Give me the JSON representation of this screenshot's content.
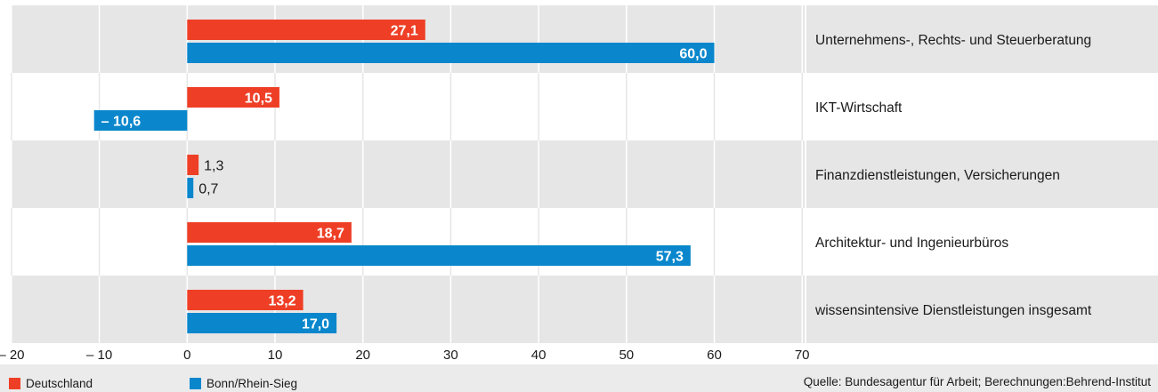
{
  "chart_data": {
    "type": "bar",
    "orientation": "horizontal",
    "categories": [
      "Unternehmens-, Rechts- und Steuerberatung",
      "IKT-Wirtschaft",
      "Finanzdienstleistungen, Versicherungen",
      "Architektur- und Ingenieurbüros",
      "wissensintensive Dienstleistungen insgesamt"
    ],
    "series": [
      {
        "name": "Deutschland",
        "color": "#ee3f26",
        "values": [
          27.1,
          10.5,
          1.3,
          18.7,
          13.2
        ],
        "labels": [
          "27,1",
          "10,5",
          "1,3",
          "18,7",
          "13,2"
        ]
      },
      {
        "name": "Bonn/Rhein-Sieg",
        "color": "#0a87cc",
        "values": [
          60.0,
          -10.6,
          0.7,
          57.3,
          17.0
        ],
        "labels": [
          "60,0",
          "– 10,6",
          "0,7",
          "57,3",
          "17,0"
        ]
      }
    ],
    "xlim": [
      -20,
      70
    ],
    "xticks": [
      -20,
      -10,
      0,
      10,
      20,
      30,
      40,
      50,
      60,
      70
    ],
    "xtick_labels": [
      "– 20",
      "– 10",
      "0",
      "10",
      "20",
      "30",
      "40",
      "50",
      "60",
      "70"
    ],
    "grid": true,
    "legend_position": "bottom-left"
  },
  "legend": {
    "items": [
      {
        "label": "Deutschland",
        "color": "#ee3f26"
      },
      {
        "label": "Bonn/Rhein-Sieg",
        "color": "#0a87cc"
      }
    ]
  },
  "source": "Quelle: Bundesagentur für Arbeit; Berechnungen:Behrend-Institut"
}
